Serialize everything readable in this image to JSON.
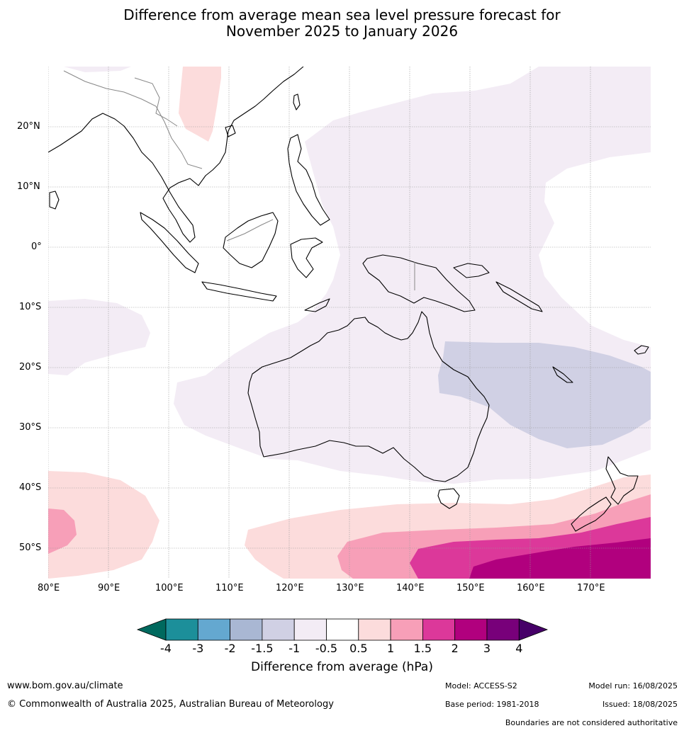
{
  "title_line1": "Difference from average mean sea level pressure forecast for",
  "title_line2": "November 2025 to January 2026",
  "map": {
    "lon_labels": [
      "80°E",
      "90°E",
      "100°E",
      "110°E",
      "120°E",
      "130°E",
      "140°E",
      "150°E",
      "160°E",
      "170°E"
    ],
    "lat_labels": [
      "20°N",
      "10°N",
      "0°",
      "10°S",
      "20°S",
      "30°S",
      "40°S",
      "50°S"
    ]
  },
  "colorbar": {
    "ticks": [
      "-4",
      "-3",
      "-2",
      "-1.5",
      "-1",
      "-0.5",
      "0.5",
      "1",
      "1.5",
      "2",
      "3",
      "4"
    ],
    "colors": {
      "lt_-4": "#00695e",
      "-4_-3": "#1c8f9a",
      "-3_-2": "#64a8d0",
      "-2_-1.5": "#a9b7d3",
      "-1.5_-1": "#d0d0e4",
      "-1_-0.5": "#f3ecf5",
      "-0.5_0.5": "#ffffff",
      "0.5_1": "#fcdcdc",
      "1_1.5": "#f79fb8",
      "1.5_2": "#dc389a",
      "2_3": "#b1007e",
      "3_4": "#78007a",
      "gt_4": "#460068"
    },
    "label": "Difference from average (hPa)"
  },
  "footer": {
    "url": "www.bom.gov.au/climate",
    "copyright": "© Commonwealth of Australia 2025, Australian Bureau of Meteorology",
    "model": "Model: ACCESS-S2",
    "base_period": "Base period: 1981-2018",
    "model_run": "Model run: 16/08/2025",
    "issued": "Issued: 18/08/2025",
    "disclaimer": "Boundaries are not considered authoritative"
  }
}
